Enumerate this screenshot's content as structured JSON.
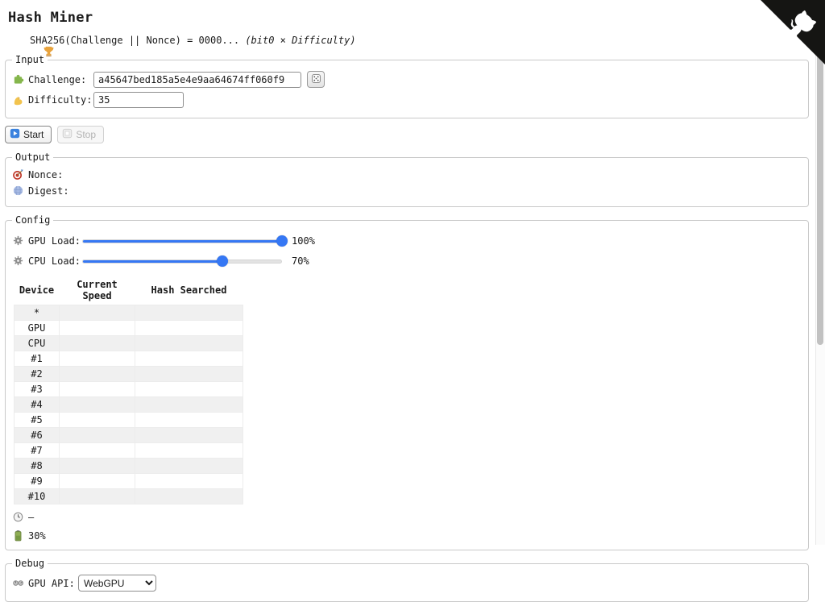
{
  "app": {
    "title": "Hash Miner"
  },
  "formula": {
    "text": "SHA256(Challenge || Nonce) = 0000... ",
    "note": "(bit0 × Difficulty)"
  },
  "input": {
    "legend": "Input",
    "challenge_label": "Challenge:",
    "challenge_value": "a45647bed185a5e4e9aa64674ff060f9",
    "difficulty_label": "Difficulty:",
    "difficulty_value": "35"
  },
  "controls": {
    "start_label": "Start",
    "stop_label": "Stop"
  },
  "output": {
    "legend": "Output",
    "nonce_label": "Nonce:",
    "nonce_value": "",
    "digest_label": "Digest:",
    "digest_value": ""
  },
  "config": {
    "legend": "Config",
    "sliders": [
      {
        "label": "GPU Load:",
        "value": 100,
        "display": "100%"
      },
      {
        "label": "CPU Load:",
        "value": 70,
        "display": "70%"
      }
    ],
    "table": {
      "headers": [
        "Device",
        "Current Speed",
        "Hash Searched"
      ],
      "rows": [
        [
          "*",
          "",
          ""
        ],
        [
          "GPU",
          "",
          ""
        ],
        [
          "CPU",
          "",
          ""
        ],
        [
          "#1",
          "",
          ""
        ],
        [
          "#2",
          "",
          ""
        ],
        [
          "#3",
          "",
          ""
        ],
        [
          "#4",
          "",
          ""
        ],
        [
          "#5",
          "",
          ""
        ],
        [
          "#6",
          "",
          ""
        ],
        [
          "#7",
          "",
          ""
        ],
        [
          "#8",
          "",
          ""
        ],
        [
          "#9",
          "",
          ""
        ],
        [
          "#10",
          "",
          ""
        ]
      ]
    },
    "eta_value": "–",
    "battery_value": "30%"
  },
  "debug": {
    "legend": "Debug",
    "gpu_api_label": "GPU API:",
    "gpu_api_value": "WebGPU"
  },
  "icons": {
    "trophy-icon": "gold trophy",
    "puzzle-icon": "green puzzle piece",
    "muscle-icon": "flexed biceps",
    "dice-icon": "game die",
    "play-icon": "blue play button",
    "stop-icon": "stop button",
    "target-icon": "direct hit dartboard",
    "yarn-icon": "blue yarn ball",
    "gear-icon": "gray gear",
    "clock-icon": "clock face",
    "battery-icon": "green battery",
    "knobs-icon": "control knobs",
    "github-octocat-icon": "github corner octocat"
  },
  "colors": {
    "accent_blue": "#3577f4",
    "slider_track": "#e3e3e3",
    "table_stripe": "#f0f0f0",
    "battery_green": "#8fae54",
    "github_corner": "#151513"
  }
}
